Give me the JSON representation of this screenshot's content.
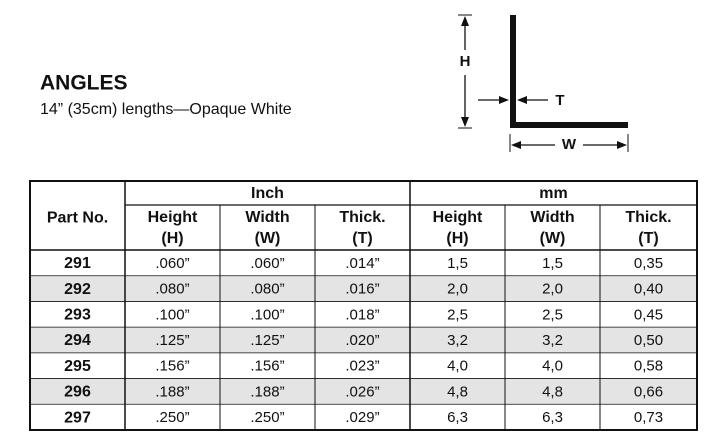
{
  "header": {
    "title": "ANGLES",
    "subtitle": "14” (35cm) lengths—Opaque White"
  },
  "diagram": {
    "labels": [
      "H",
      "T",
      "W"
    ]
  },
  "table": {
    "groups": [
      "Inch",
      "mm"
    ],
    "first_column": "Part No.",
    "columns": [
      {
        "name": "Height",
        "symbol": "(H)"
      },
      {
        "name": "Width",
        "symbol": "(W)"
      },
      {
        "name": "Thick.",
        "symbol": "(T)"
      },
      {
        "name": "Height",
        "symbol": "(H)"
      },
      {
        "name": "Width",
        "symbol": "(W)"
      },
      {
        "name": "Thick.",
        "symbol": "(T)"
      }
    ],
    "rows": [
      [
        "291",
        ".060”",
        ".060”",
        ".014”",
        "1,5",
        "1,5",
        "0,35"
      ],
      [
        "292",
        ".080”",
        ".080”",
        ".016”",
        "2,0",
        "2,0",
        "0,40"
      ],
      [
        "293",
        ".100”",
        ".100”",
        ".018”",
        "2,5",
        "2,5",
        "0,45"
      ],
      [
        "294",
        ".125”",
        ".125”",
        ".020”",
        "3,2",
        "3,2",
        "0,50"
      ],
      [
        "295",
        ".156”",
        ".156”",
        ".023”",
        "4,0",
        "4,0",
        "0,58"
      ],
      [
        "296",
        ".188”",
        ".188”",
        ".026”",
        "4,8",
        "4,8",
        "0,66"
      ],
      [
        "297",
        ".250”",
        ".250”",
        ".029”",
        "6,3",
        "6,3",
        "0,73"
      ]
    ]
  }
}
